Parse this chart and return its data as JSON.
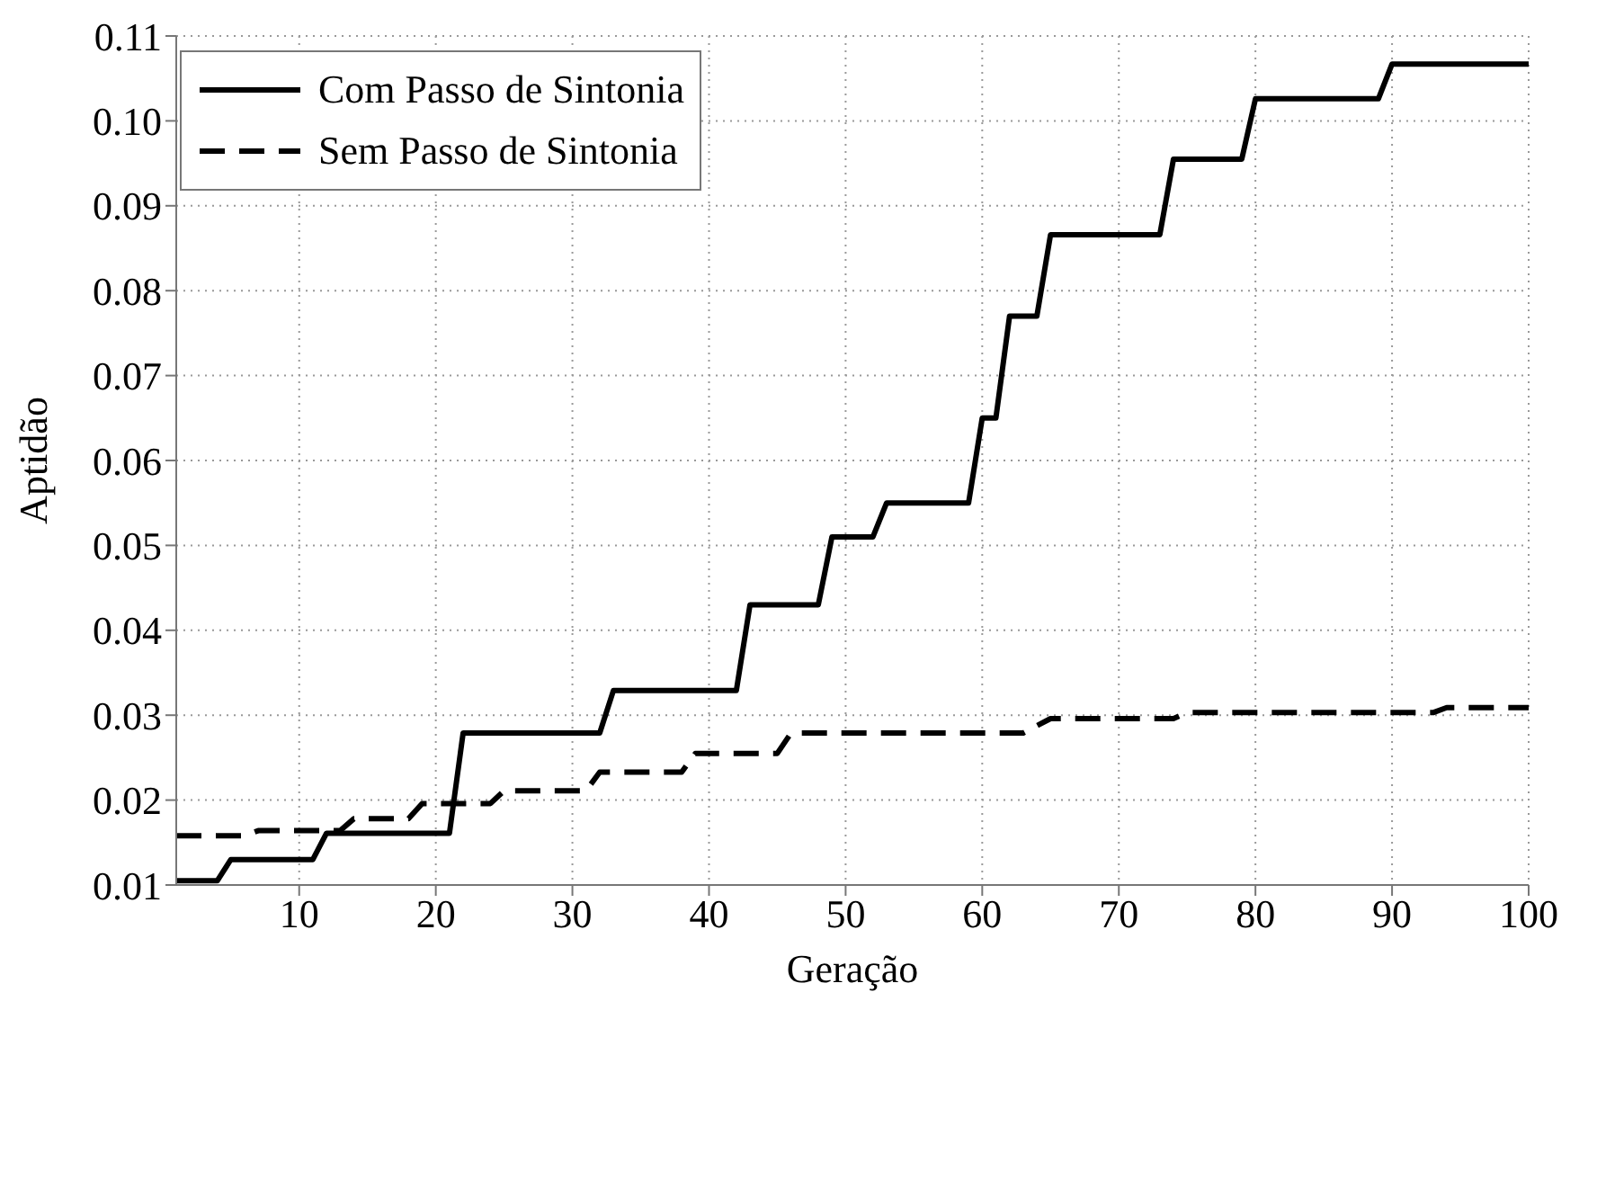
{
  "chart_data": {
    "type": "line",
    "xlabel": "Geração",
    "ylabel": "Aptidão",
    "xlim": [
      1,
      100
    ],
    "ylim": [
      0.01,
      0.11
    ],
    "xticks": [
      10,
      20,
      30,
      40,
      50,
      60,
      70,
      80,
      90,
      100
    ],
    "yticks": [
      0.01,
      0.02,
      0.03,
      0.04,
      0.05,
      0.06,
      0.07,
      0.08,
      0.09,
      {
        "value": 0.1,
        "label": "0.10"
      },
      0.11
    ],
    "grid": true,
    "legend": "top left",
    "marker": "none",
    "series": [
      {
        "name": "Com Passo de Sintonia",
        "color": "#000000",
        "line_style": "solid",
        "x": [
          1,
          4,
          5,
          11,
          12,
          21,
          22,
          32,
          33,
          42,
          43,
          48,
          49,
          52,
          53,
          59,
          60,
          61,
          62,
          64,
          65,
          73,
          74,
          79,
          80,
          89,
          90,
          100
        ],
        "values": [
          0.0105,
          0.0105,
          0.013,
          0.013,
          0.0161,
          0.0161,
          0.0279,
          0.0279,
          0.0329,
          0.0329,
          0.043,
          0.043,
          0.051,
          0.051,
          0.055,
          0.055,
          0.065,
          0.065,
          0.077,
          0.077,
          0.0866,
          0.0866,
          0.0955,
          0.0955,
          0.1026,
          0.1026,
          0.1067,
          0.1067
        ]
      },
      {
        "name": "Sem Passo de Sintonia",
        "color": "#000000",
        "line_style": "dashed",
        "x": [
          1,
          6,
          7,
          13,
          14,
          18,
          19,
          24,
          25,
          31,
          32,
          38,
          39,
          45,
          46,
          63,
          65,
          74,
          75,
          93,
          94,
          100
        ],
        "values": [
          0.0158,
          0.0158,
          0.0164,
          0.0164,
          0.0178,
          0.0178,
          0.0196,
          0.0196,
          0.0211,
          0.0211,
          0.0233,
          0.0233,
          0.0255,
          0.0255,
          0.0279,
          0.0279,
          0.0296,
          0.0296,
          0.0303,
          0.0303,
          0.0309,
          0.0309
        ]
      }
    ]
  }
}
